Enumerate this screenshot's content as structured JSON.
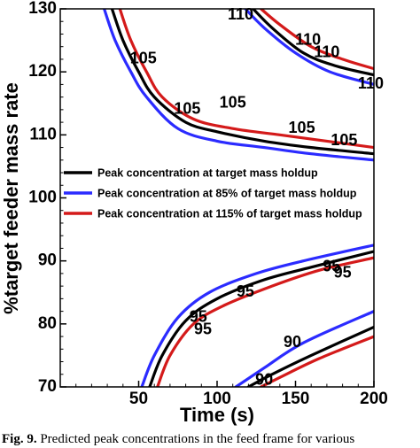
{
  "chart_data": {
    "type": "line",
    "xlabel": "Time (s)",
    "ylabel": "%target feeder mass rate",
    "xlim": [
      0,
      200
    ],
    "ylim": [
      70,
      130
    ],
    "xticks": [
      50,
      100,
      150,
      200
    ],
    "yticks": [
      70,
      80,
      90,
      100,
      110,
      120,
      130
    ],
    "grid": false,
    "legend_position": "middle-left",
    "series": [
      {
        "name": "Peak concentration at target mass holdup",
        "color": "#000000",
        "contours": [
          {
            "level": "105",
            "points": [
              [
                33,
                130
              ],
              [
                40,
                125
              ],
              [
                50,
                120
              ],
              [
                60,
                116
              ],
              [
                80,
                112
              ],
              [
                100,
                110.5
              ],
              [
                130,
                109
              ],
              [
                160,
                108
              ],
              [
                200,
                107
              ]
            ]
          },
          {
            "level": "110",
            "points": [
              [
                123,
                130
              ],
              [
                135,
                127
              ],
              [
                155,
                123
              ],
              [
                175,
                121
              ],
              [
                200,
                119.5
              ]
            ]
          },
          {
            "level": "95",
            "points": [
              [
                57,
                70
              ],
              [
                65,
                75
              ],
              [
                80,
                80.5
              ],
              [
                100,
                84
              ],
              [
                130,
                87
              ],
              [
                160,
                89
              ],
              [
                200,
                91.5
              ]
            ]
          },
          {
            "level": "90",
            "points": [
              [
                120,
                70
              ],
              [
                135,
                72
              ],
              [
                160,
                75
              ],
              [
                200,
                79.5
              ]
            ]
          }
        ]
      },
      {
        "name": "Peak concentration at 85% of target mass holdup",
        "color": "#2b2bff",
        "contours": [
          {
            "level": "105",
            "points": [
              [
                28,
                130
              ],
              [
                35,
                125
              ],
              [
                45,
                120
              ],
              [
                55,
                116
              ],
              [
                75,
                111
              ],
              [
                100,
                109
              ],
              [
                130,
                108
              ],
              [
                160,
                107
              ],
              [
                200,
                106
              ]
            ]
          },
          {
            "level": "110",
            "points": [
              [
                118,
                130
              ],
              [
                130,
                127
              ],
              [
                150,
                123
              ],
              [
                172,
                120
              ],
              [
                200,
                118
              ]
            ]
          },
          {
            "level": "95",
            "points": [
              [
                52,
                70
              ],
              [
                60,
                75
              ],
              [
                75,
                81
              ],
              [
                95,
                85
              ],
              [
                125,
                88
              ],
              [
                155,
                90
              ],
              [
                200,
                92.5
              ]
            ]
          },
          {
            "level": "90",
            "points": [
              [
                112,
                70
              ],
              [
                130,
                73
              ],
              [
                155,
                77
              ],
              [
                200,
                82
              ]
            ]
          }
        ]
      },
      {
        "name": "Peak concentration at 115% of target mass holdup",
        "color": "#d41a1a",
        "contours": [
          {
            "level": "105",
            "points": [
              [
                38,
                130
              ],
              [
                45,
                125
              ],
              [
                55,
                120
              ],
              [
                65,
                116
              ],
              [
                85,
                112.5
              ],
              [
                110,
                111
              ],
              [
                140,
                110
              ],
              [
                170,
                109
              ],
              [
                200,
                108
              ]
            ]
          },
          {
            "level": "110",
            "points": [
              [
                128,
                130
              ],
              [
                140,
                127.5
              ],
              [
                160,
                124
              ],
              [
                180,
                122
              ],
              [
                200,
                120.5
              ]
            ]
          },
          {
            "level": "95",
            "points": [
              [
                62,
                70
              ],
              [
                70,
                75
              ],
              [
                85,
                80
              ],
              [
                105,
                83
              ],
              [
                135,
                86
              ],
              [
                165,
                88.5
              ],
              [
                200,
                90.5
              ]
            ]
          },
          {
            "level": "90",
            "points": [
              [
                128,
                70
              ],
              [
                140,
                71.5
              ],
              [
                165,
                74.5
              ],
              [
                200,
                78
              ]
            ]
          }
        ]
      }
    ],
    "contour_labels": [
      {
        "text": "110",
        "x": 115,
        "y": 129
      },
      {
        "text": "110",
        "x": 158,
        "y": 125
      },
      {
        "text": "110",
        "x": 170,
        "y": 123
      },
      {
        "text": "110",
        "x": 198,
        "y": 118
      },
      {
        "text": "105",
        "x": 53,
        "y": 122
      },
      {
        "text": "105",
        "x": 81,
        "y": 114
      },
      {
        "text": "105",
        "x": 110,
        "y": 115
      },
      {
        "text": "105",
        "x": 154,
        "y": 111
      },
      {
        "text": "105",
        "x": 181,
        "y": 109
      },
      {
        "text": "95",
        "x": 88,
        "y": 81
      },
      {
        "text": "95",
        "x": 91,
        "y": 79
      },
      {
        "text": "95",
        "x": 118,
        "y": 85
      },
      {
        "text": "95",
        "x": 173,
        "y": 89
      },
      {
        "text": "95",
        "x": 180,
        "y": 88
      },
      {
        "text": "90",
        "x": 148,
        "y": 77
      },
      {
        "text": "90",
        "x": 130,
        "y": 71
      }
    ]
  },
  "caption": {
    "prefix": "Fig. 9.",
    "text": " Predicted peak concentrations in the feed frame for various"
  }
}
